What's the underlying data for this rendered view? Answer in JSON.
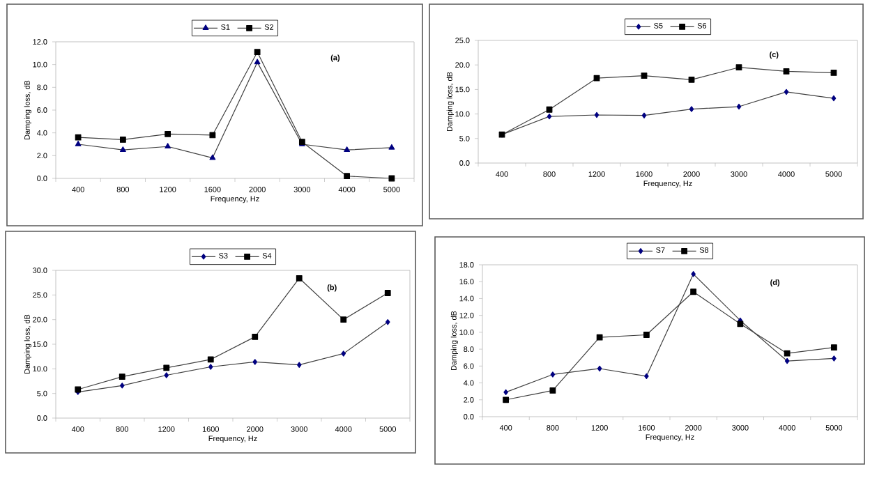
{
  "chart_data": [
    {
      "type": "line",
      "xlabel": "Frequency, Hz",
      "ylabel": "Damping loss, dB",
      "annotations": [
        "(a)"
      ],
      "categories": [
        "400",
        "800",
        "1200",
        "1600",
        "2000",
        "3000",
        "4000",
        "5000"
      ],
      "ylim": [
        0,
        12
      ],
      "yticks": [
        {
          "value": 0,
          "label": "0.0"
        },
        {
          "value": 2,
          "label": "2.0"
        },
        {
          "value": 4,
          "label": "4.0"
        },
        {
          "value": 6,
          "label": "6.0"
        },
        {
          "value": 8,
          "label": "8.0"
        },
        {
          "value": 10,
          "label": "10.0"
        },
        {
          "value": 12,
          "label": "12.0"
        }
      ],
      "legend": "top",
      "grid": false,
      "series": [
        {
          "name": "S1",
          "color": "#000080",
          "marker": "triangle",
          "values": [
            3.0,
            2.5,
            2.8,
            1.8,
            10.2,
            3.0,
            2.5,
            2.7
          ]
        },
        {
          "name": "S2",
          "color": "#000000",
          "marker": "square",
          "values": [
            3.6,
            3.4,
            3.9,
            3.8,
            11.1,
            3.2,
            0.2,
            0.0
          ]
        }
      ]
    },
    {
      "type": "line",
      "xlabel": "Frequency, Hz",
      "ylabel": "Damping loss, dB",
      "annotations": [
        "(c)"
      ],
      "categories": [
        "400",
        "800",
        "1200",
        "1600",
        "2000",
        "3000",
        "4000",
        "5000"
      ],
      "ylim": [
        0,
        25
      ],
      "yticks": [
        {
          "value": 0,
          "label": "0.0"
        },
        {
          "value": 5,
          "label": "5.0"
        },
        {
          "value": 10,
          "label": "10.0"
        },
        {
          "value": 15,
          "label": "15.0"
        },
        {
          "value": 20,
          "label": "20.0"
        },
        {
          "value": 25,
          "label": "25.0"
        }
      ],
      "legend": "top",
      "grid": false,
      "series": [
        {
          "name": "S5",
          "color": "#000080",
          "marker": "diamond",
          "values": [
            5.8,
            9.5,
            9.8,
            9.7,
            11.0,
            11.5,
            14.5,
            13.2
          ]
        },
        {
          "name": "S6",
          "color": "#000000",
          "marker": "square",
          "values": [
            5.8,
            10.9,
            17.3,
            17.8,
            17.0,
            19.5,
            18.7,
            18.4
          ]
        }
      ]
    },
    {
      "type": "line",
      "xlabel": "Frequency, Hz",
      "ylabel": "Damping loss, dB",
      "annotations": [
        "(b)"
      ],
      "categories": [
        "400",
        "800",
        "1200",
        "1600",
        "2000",
        "3000",
        "4000",
        "5000"
      ],
      "ylim": [
        0,
        30
      ],
      "yticks": [
        {
          "value": 0,
          "label": "0.0"
        },
        {
          "value": 5,
          "label": "5.0"
        },
        {
          "value": 10,
          "label": "10.0"
        },
        {
          "value": 15,
          "label": "15.0"
        },
        {
          "value": 20,
          "label": "20.0"
        },
        {
          "value": 25,
          "label": "25.0"
        },
        {
          "value": 30,
          "label": "30.0"
        }
      ],
      "legend": "top",
      "grid": false,
      "series": [
        {
          "name": "S3",
          "color": "#000080",
          "marker": "diamond",
          "values": [
            5.3,
            6.6,
            8.7,
            10.4,
            11.4,
            10.8,
            13.1,
            19.5
          ]
        },
        {
          "name": "S4",
          "color": "#000000",
          "marker": "square",
          "values": [
            5.8,
            8.4,
            10.2,
            11.9,
            16.5,
            28.4,
            20.0,
            25.4
          ]
        }
      ]
    },
    {
      "type": "line",
      "xlabel": "Frequency, Hz",
      "ylabel": "Damping loss, dB",
      "annotations": [
        "(d)"
      ],
      "categories": [
        "400",
        "800",
        "1200",
        "1600",
        "2000",
        "3000",
        "4000",
        "5000"
      ],
      "ylim": [
        0,
        18
      ],
      "yticks": [
        {
          "value": 0,
          "label": "0.0"
        },
        {
          "value": 2,
          "label": "2.0"
        },
        {
          "value": 4,
          "label": "4.0"
        },
        {
          "value": 6,
          "label": "6.0"
        },
        {
          "value": 8,
          "label": "8.0"
        },
        {
          "value": 10,
          "label": "10.0"
        },
        {
          "value": 12,
          "label": "12.0"
        },
        {
          "value": 14,
          "label": "14.0"
        },
        {
          "value": 16,
          "label": "16.0"
        },
        {
          "value": 18,
          "label": "18.0"
        }
      ],
      "legend": "top",
      "grid": false,
      "series": [
        {
          "name": "S7",
          "color": "#000080",
          "marker": "diamond",
          "values": [
            2.9,
            5.0,
            5.7,
            4.8,
            16.9,
            11.4,
            6.6,
            6.9
          ]
        },
        {
          "name": "S8",
          "color": "#000000",
          "marker": "square",
          "values": [
            2.0,
            3.1,
            9.4,
            9.7,
            14.8,
            11.0,
            7.5,
            8.2
          ]
        }
      ]
    }
  ]
}
